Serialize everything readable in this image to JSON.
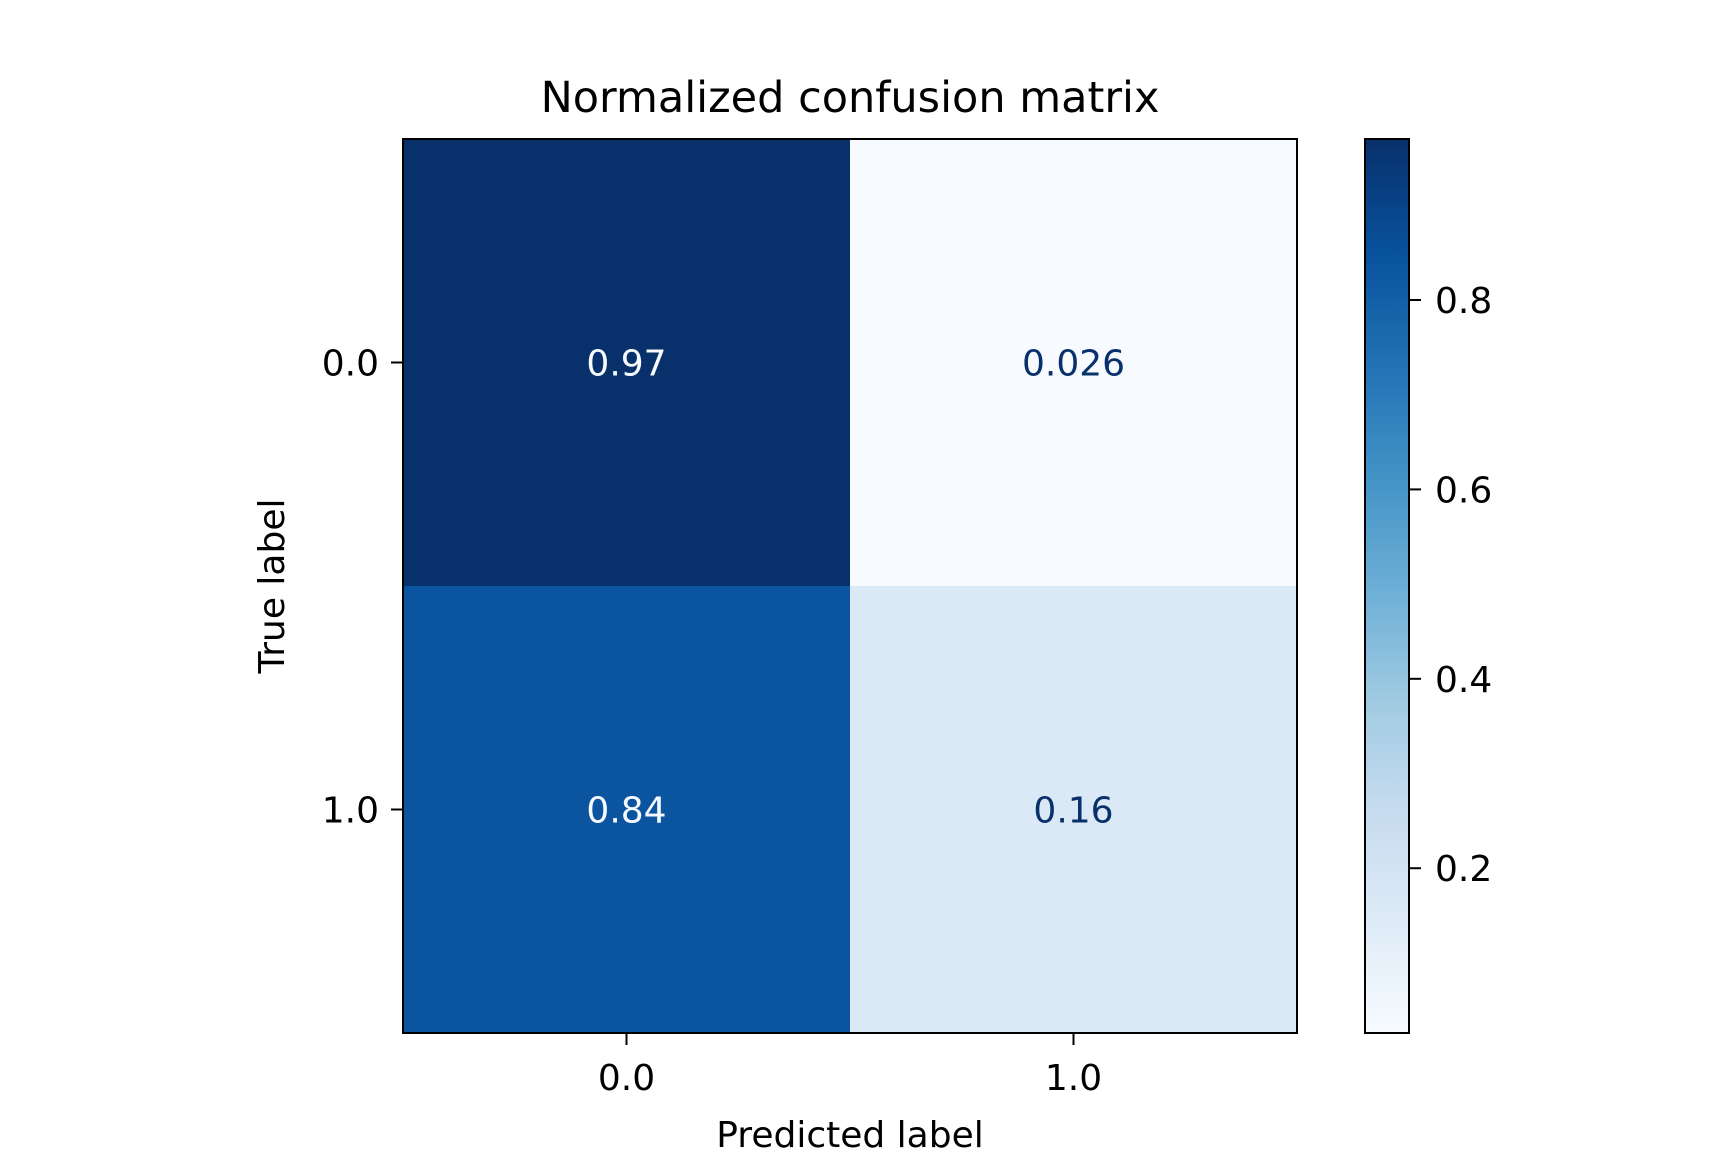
{
  "chart_data": {
    "type": "heatmap",
    "title": "Normalized confusion matrix",
    "xlabel": "Predicted label",
    "ylabel": "True label",
    "x_categories": [
      "0.0",
      "1.0"
    ],
    "y_categories": [
      "0.0",
      "1.0"
    ],
    "matrix": [
      [
        0.97,
        0.026
      ],
      [
        0.84,
        0.16
      ]
    ],
    "cell_labels": [
      [
        "0.97",
        "0.026"
      ],
      [
        "0.84",
        "0.16"
      ]
    ],
    "colormap": "Blues",
    "colorbar": {
      "vmin": 0.026,
      "vmax": 0.97,
      "ticks": [
        0.2,
        0.4,
        0.6,
        0.8
      ],
      "tick_labels": [
        "0.2",
        "0.4",
        "0.6",
        "0.8"
      ]
    },
    "grid": false
  }
}
